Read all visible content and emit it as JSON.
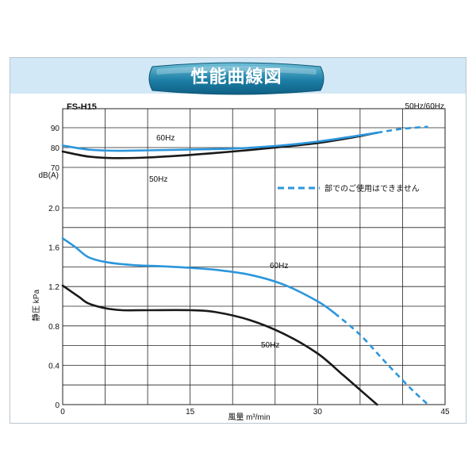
{
  "banner": {
    "title": "性能曲線図"
  },
  "header": {
    "model": "FS-H15",
    "freq": "50Hz/60Hz"
  },
  "colors": {
    "fan60": "#2b96dc",
    "fan50": "#1a1a1a",
    "band": "#d3e8f6",
    "grid": "#222222"
  },
  "chart_data": {
    "type": "line",
    "model": "FS-H15",
    "xlabel": "風量 m³/min",
    "xlim": [
      0,
      45
    ],
    "xticks": [
      "0",
      "15",
      "30",
      "45"
    ],
    "noise_axis": {
      "label": "dB(A)",
      "ylim": [
        70,
        90
      ],
      "ticks": [
        "90",
        "80",
        "70"
      ],
      "series": [
        {
          "name": "60Hz",
          "color": "#2b96dc",
          "x": [
            0,
            3,
            6,
            10,
            15,
            20,
            25,
            30,
            34,
            37
          ],
          "y": [
            81,
            79,
            78.4,
            78.6,
            79,
            79.5,
            80.8,
            83,
            85.5,
            87.5
          ],
          "dashed_x": [
            37,
            40,
            43
          ],
          "dashed_y": [
            87.5,
            89.5,
            90.5
          ]
        },
        {
          "name": "50Hz",
          "color": "#1a1a1a",
          "x": [
            0,
            3,
            6,
            10,
            15,
            20,
            25,
            30,
            34,
            37
          ],
          "y": [
            78,
            75.5,
            74.7,
            75,
            76.3,
            78,
            80,
            82.3,
            85,
            87.5
          ]
        }
      ]
    },
    "pressure_axis": {
      "label": "静圧 kPa",
      "ylim": [
        0,
        2.0
      ],
      "ticks": [
        "2.0",
        "1.6",
        "1.2",
        "0.8",
        "0.4",
        "0"
      ],
      "series": [
        {
          "name": "60Hz",
          "color": "#2b96dc",
          "x": [
            0,
            1.5,
            3,
            5,
            8,
            12,
            15,
            18,
            22,
            26,
            30,
            32
          ],
          "y": [
            1.69,
            1.6,
            1.5,
            1.45,
            1.42,
            1.405,
            1.39,
            1.37,
            1.32,
            1.22,
            1.05,
            0.93
          ],
          "dashed_x": [
            32,
            35,
            38,
            41,
            43
          ],
          "dashed_y": [
            0.93,
            0.71,
            0.43,
            0.16,
            0.0
          ]
        },
        {
          "name": "50Hz",
          "color": "#1a1a1a",
          "x": [
            0,
            1,
            2,
            3,
            5,
            7,
            10,
            15,
            18,
            22,
            26,
            30,
            33,
            35,
            37
          ],
          "y": [
            1.21,
            1.15,
            1.09,
            1.03,
            0.98,
            0.96,
            0.96,
            0.96,
            0.94,
            0.86,
            0.72,
            0.52,
            0.3,
            0.15,
            0.0
          ]
        }
      ]
    },
    "annotations": {
      "noise_60": "60Hz",
      "noise_50": "50Hz",
      "pressure_60": "60Hz",
      "pressure_50": "50Hz",
      "legend_dashed": "部でのご使用はできません"
    }
  }
}
